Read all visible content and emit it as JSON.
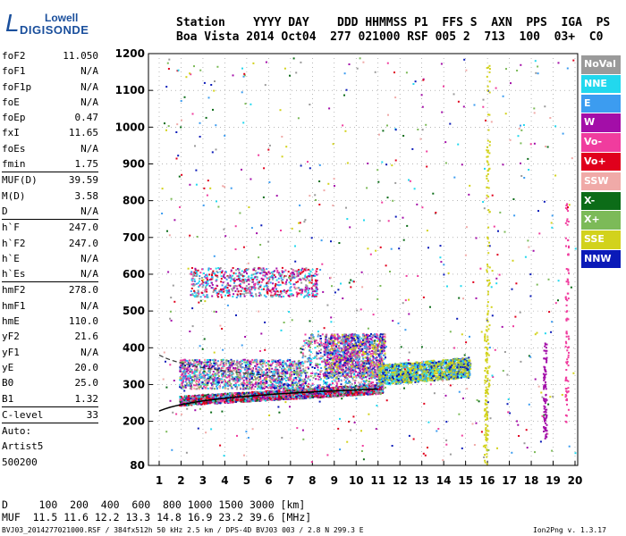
{
  "logo": {
    "mark": "L",
    "top": "Lowell",
    "bottom": "DIGISONDE"
  },
  "header": {
    "labels": "Station    YYYY DAY    DDD HHMMSS P1  FFS S  AXN  PPS  IGA  PS",
    "values": "Boa Vista 2014 Oct04  277 021000 RSF 005 2  713  100  03+  C0"
  },
  "params": [
    {
      "name": "foF2",
      "value": "11.050"
    },
    {
      "name": "foF1",
      "value": "N/A"
    },
    {
      "name": "foF1p",
      "value": "N/A"
    },
    {
      "name": "foE",
      "value": "N/A"
    },
    {
      "name": "foEp",
      "value": "0.47"
    },
    {
      "name": "fxI",
      "value": "11.65"
    },
    {
      "name": "foEs",
      "value": "N/A"
    },
    {
      "name": "fmin",
      "value": "1.75"
    },
    {
      "sep": true
    },
    {
      "name": "MUF(D)",
      "value": "39.59"
    },
    {
      "name": "M(D)",
      "value": "3.58"
    },
    {
      "name": "D",
      "value": "N/A"
    },
    {
      "sep": true
    },
    {
      "name": "h`F",
      "value": "247.0"
    },
    {
      "name": "h`F2",
      "value": "247.0"
    },
    {
      "name": "h`E",
      "value": "N/A"
    },
    {
      "name": "h`Es",
      "value": "N/A"
    },
    {
      "sep": true
    },
    {
      "name": "hmF2",
      "value": "278.0"
    },
    {
      "name": "hmF1",
      "value": "N/A"
    },
    {
      "name": "hmE",
      "value": "110.0"
    },
    {
      "name": "yF2",
      "value": "21.6"
    },
    {
      "name": "yF1",
      "value": "N/A"
    },
    {
      "name": "yE",
      "value": "20.0"
    },
    {
      "name": "B0",
      "value": "25.0"
    },
    {
      "name": "B1",
      "value": "1.32"
    },
    {
      "sep": true
    },
    {
      "name": "C-level",
      "value": "33"
    },
    {
      "sep": true
    }
  ],
  "auto": [
    "Auto:",
    "Artist5",
    "500200"
  ],
  "legend": [
    {
      "label": "NoVal",
      "color": "#9a9a9a"
    },
    {
      "label": "NNE",
      "color": "#22d8ee"
    },
    {
      "label": "E",
      "color": "#3c9cf0"
    },
    {
      "label": "W",
      "color": "#a30ea8"
    },
    {
      "label": "Vo-",
      "color": "#f03c9e"
    },
    {
      "label": "Vo+",
      "color": "#e0001c"
    },
    {
      "label": "SSW",
      "color": "#f0aaa8"
    },
    {
      "label": "X-",
      "color": "#0c6c18"
    },
    {
      "label": "X+",
      "color": "#7cba58"
    },
    {
      "label": "SSE",
      "color": "#d2d21c"
    },
    {
      "label": "NNW",
      "color": "#0a1ab8"
    }
  ],
  "yTicks": [
    "80",
    "200",
    "300",
    "400",
    "500",
    "600",
    "700",
    "800",
    "900",
    "1000",
    "1100",
    "1200"
  ],
  "xTicks": [
    "1",
    "2",
    "3",
    "4",
    "5",
    "6",
    "7",
    "8",
    "9",
    "10",
    "11",
    "12",
    "13",
    "14",
    "15",
    "16",
    "17",
    "18",
    "19",
    "20"
  ],
  "muf": {
    "dRow": "D     100  200  400  600  800 1000 1500 3000 [km]",
    "mufRow": "MUF  11.5 11.6 12.2 13.3 14.8 16.9 23.2 39.6 [MHz]"
  },
  "footer": {
    "left": "BVJ03_2014277021000.RSF / 384fx512h 50 kHz 2.5 km / DPS-4D BVJ03 003 / 2.8 N 299.3 E",
    "right": "Ion2Png v. 1.3.17"
  }
}
